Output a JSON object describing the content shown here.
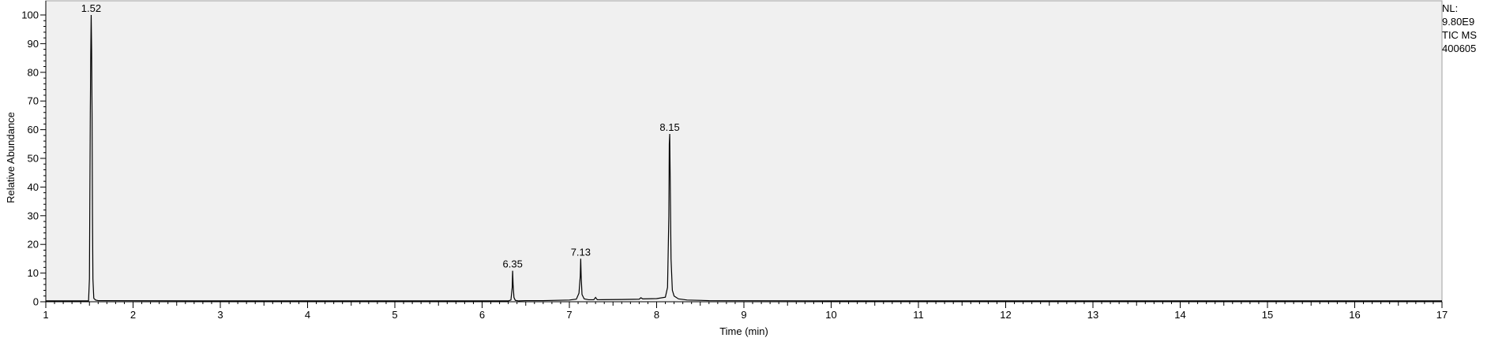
{
  "chart_data": {
    "type": "line",
    "xlabel": "Time (min)",
    "ylabel": "Relative Abundance",
    "xlim": [
      1,
      17
    ],
    "ylim": [
      0,
      100
    ],
    "x_ticks": [
      1,
      2,
      3,
      4,
      5,
      6,
      7,
      8,
      9,
      10,
      11,
      12,
      13,
      14,
      15,
      16,
      17
    ],
    "y_ticks": [
      0,
      10,
      20,
      30,
      40,
      50,
      60,
      70,
      80,
      90,
      100
    ],
    "grid": false,
    "info_lines": [
      "NL:",
      "9.80E9",
      "TIC  MS",
      "400605"
    ],
    "series": [
      {
        "x": [
          1.0,
          1.49,
          1.5,
          1.505,
          1.51,
          1.515,
          1.52,
          1.525,
          1.53,
          1.535,
          1.54,
          1.55,
          1.57,
          1.6,
          3.0,
          5.0,
          6.0,
          6.3,
          6.33,
          6.345,
          6.35,
          6.355,
          6.365,
          6.38,
          6.42,
          6.5,
          6.7,
          7.0,
          7.08,
          7.11,
          7.125,
          7.13,
          7.135,
          7.145,
          7.17,
          7.22,
          7.28,
          7.3,
          7.32,
          7.6,
          7.8,
          7.82,
          7.84,
          8.0,
          8.1,
          8.125,
          8.14,
          8.145,
          8.15,
          8.155,
          8.165,
          8.18,
          8.2,
          8.25,
          8.35,
          8.6,
          10.0,
          17.0
        ],
        "y": [
          0.3,
          0.3,
          8.0,
          38.0,
          66.0,
          86.0,
          100.0,
          88.0,
          66.0,
          30.0,
          8.0,
          1.2,
          0.6,
          0.4,
          0.3,
          0.3,
          0.3,
          0.3,
          0.6,
          5.0,
          10.8,
          6.0,
          1.5,
          0.5,
          0.3,
          0.4,
          0.4,
          0.6,
          0.9,
          3.0,
          9.0,
          15.0,
          9.0,
          2.5,
          1.0,
          0.7,
          0.7,
          1.5,
          0.7,
          0.8,
          0.9,
          1.4,
          1.0,
          1.1,
          1.6,
          5.0,
          30.0,
          55.0,
          58.5,
          44.0,
          15.0,
          4.0,
          2.0,
          1.0,
          0.6,
          0.4,
          0.3,
          0.3
        ]
      }
    ],
    "annotations": [
      {
        "x": 1.52,
        "y": 100,
        "text": "1.52"
      },
      {
        "x": 6.35,
        "y": 10.8,
        "text": "6.35"
      },
      {
        "x": 7.13,
        "y": 15.0,
        "text": "7.13"
      },
      {
        "x": 8.15,
        "y": 58.5,
        "text": "8.15"
      }
    ]
  }
}
